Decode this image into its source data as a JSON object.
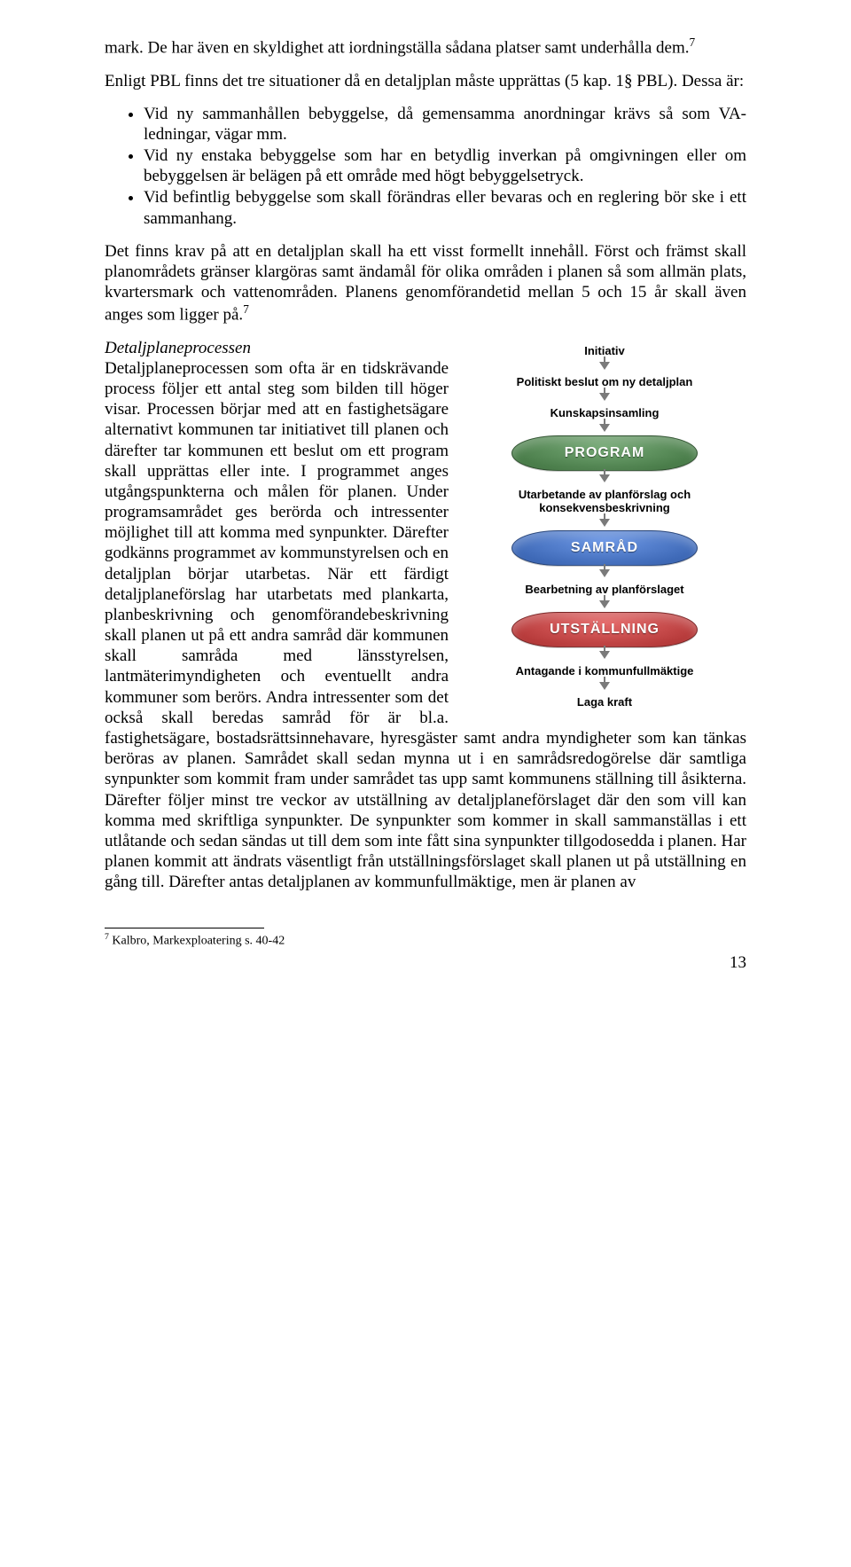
{
  "para1": "mark. De har även en skyldighet att iordningställa sådana platser samt underhålla dem.",
  "sup1": "7",
  "para2": "Enligt PBL finns det tre situationer då en detaljplan måste upprättas (5 kap. 1§ PBL). Dessa är:",
  "bullets": [
    "Vid ny sammanhållen bebyggelse, då gemensamma anordningar krävs så som VA- ledningar, vägar mm.",
    "Vid ny enstaka bebyggelse som har en betydlig inverkan på omgivningen eller om bebyggelsen är belägen på ett område med högt bebyggelsetryck.",
    "Vid befintlig bebyggelse som skall förändras eller bevaras och en reglering bör ske i ett sammanhang."
  ],
  "para3": "Det finns krav på att en detaljplan skall ha ett visst formellt innehåll. Först och främst skall planområdets gränser klargöras samt ändamål för olika områden i planen så som allmän plats, kvartersmark och vattenområden. Planens genomförandetid mellan 5 och 15 år skall även anges som ligger på.",
  "sup3": "7",
  "heading": "Detaljplaneprocessen",
  "para4a": "Detaljplaneprocessen som ofta är en tidskrävande process följer ett antal steg som bilden till höger visar. Processen börjar med att en fastighetsägare alternativt kommunen tar initiativet till planen och därefter tar kommunen ett beslut om ett program skall upprättas eller inte. I programmet anges utgångspunkterna och målen för planen. Under programsamrådet ges berörda och intressenter möjlighet till att komma med synpunkter. Därefter godkänns programmet av kommunstyrelsen och en detaljplan börjar utarbetas. När ett färdigt detaljplaneförslag har utarbetats med plankarta, planbeskrivning och genomförandebeskrivning skall planen ut på ett andra samråd där kommunen skall samråda med länsstyrelsen, lantmäterimyndigheten och eventuellt andra kommuner som berörs. Andra intressenter som det också skall beredas samråd för är bl.a. fastighetsägare, bostadsrättsinnehavare, hyresgäster samt andra myndigheter som kan tänkas beröras av planen. Samrådet skall sedan mynna ut i en samrådsredogörelse där samtliga synpunkter som kommit fram under samrådet tas upp samt kommunens ställning till åsikterna. Därefter följer minst tre veckor av utställning av detaljplaneförslaget där den som vill kan komma med skriftliga synpunkter. De synpunkter som kommer in skall sammanställas i ett utlåtande och sedan sändas ut till dem som inte fått sina synpunkter tillgodosedda i planen. Har planen kommit att ändrats väsentligt från utställningsförslaget skall planen ut på utställning en gång till. Därefter antas detaljplanen av kommunfullmäktige, men är planen av",
  "figure": {
    "steps": {
      "s1": "Initiativ",
      "s2": "Politiskt beslut om ny detaljplan",
      "s3": "Kunskapsinsamling",
      "s4": "Utarbetande av planförslag och konsekvensbeskrivning",
      "s5": "Bearbetning av planförslaget",
      "s6": "Antagande i kommunfullmäktige",
      "s7": "Laga kraft"
    },
    "pills": {
      "program": {
        "label": "PROGRAM",
        "color": "#3b6e3b"
      },
      "samrad": {
        "label": "SAMRÅD",
        "color": "#2f5aa8"
      },
      "utstallning": {
        "label": "UTSTÄLLNING",
        "color": "#a82c2c"
      }
    }
  },
  "footnote": "Kalbro, Markexploatering s. 40-42",
  "footnote_num": "7",
  "page_num": "13"
}
